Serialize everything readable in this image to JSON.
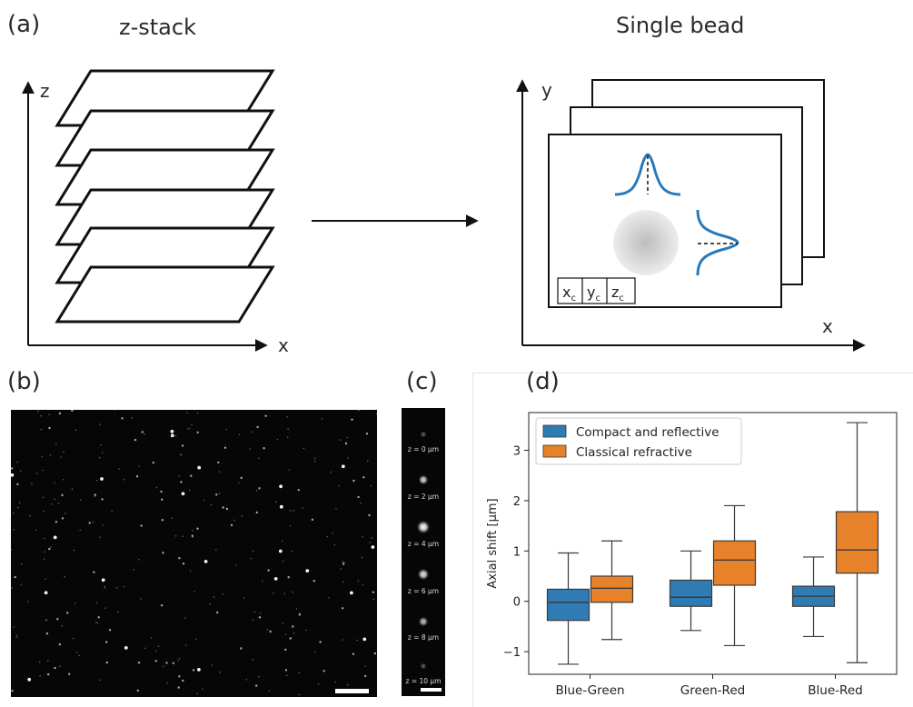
{
  "panel_a": {
    "label": "(a)",
    "left_title": "z-stack",
    "right_title": "Single bead",
    "left_axis_vertical": "z",
    "left_axis_horizontal": "x",
    "right_axis_vertical": "y",
    "right_axis_horizontal": "x",
    "center_labels": [
      "x",
      "y",
      "z"
    ],
    "center_subscript": "c",
    "profile_color": "#2a7ab8"
  },
  "panel_b": {
    "label": "(b)"
  },
  "panel_c": {
    "label": "(c)",
    "z_labels": [
      "z = 0 µm",
      "z = 2 µm",
      "z = 4 µm",
      "z = 6 µm",
      "z = 8 µm",
      "z = 10 µm"
    ]
  },
  "panel_d": {
    "label": "(d)"
  },
  "chart_data": {
    "type": "box",
    "categories": [
      "Blue-Green",
      "Green-Red",
      "Blue-Red"
    ],
    "ylabel": "Axial shift [µm]",
    "ylim": [
      -1.45,
      3.75
    ],
    "yticks": [
      -1,
      0,
      1,
      2,
      3
    ],
    "legend_position": "top-left",
    "series": [
      {
        "name": "Compact and reflective",
        "color": "#2f7bb4",
        "boxes": [
          {
            "whisker_low": -1.25,
            "q1": -0.38,
            "median": -0.02,
            "q3": 0.24,
            "whisker_high": 0.96
          },
          {
            "whisker_low": -0.58,
            "q1": -0.1,
            "median": 0.08,
            "q3": 0.42,
            "whisker_high": 1.0
          },
          {
            "whisker_low": -0.7,
            "q1": -0.1,
            "median": 0.1,
            "q3": 0.3,
            "whisker_high": 0.88
          }
        ]
      },
      {
        "name": "Classical refractive",
        "color": "#e8822a",
        "boxes": [
          {
            "whisker_low": -0.76,
            "q1": -0.02,
            "median": 0.26,
            "q3": 0.5,
            "whisker_high": 1.2
          },
          {
            "whisker_low": -0.88,
            "q1": 0.32,
            "median": 0.82,
            "q3": 1.2,
            "whisker_high": 1.9
          },
          {
            "whisker_low": -1.22,
            "q1": 0.56,
            "median": 1.02,
            "q3": 1.78,
            "whisker_high": 3.55
          }
        ]
      }
    ]
  }
}
